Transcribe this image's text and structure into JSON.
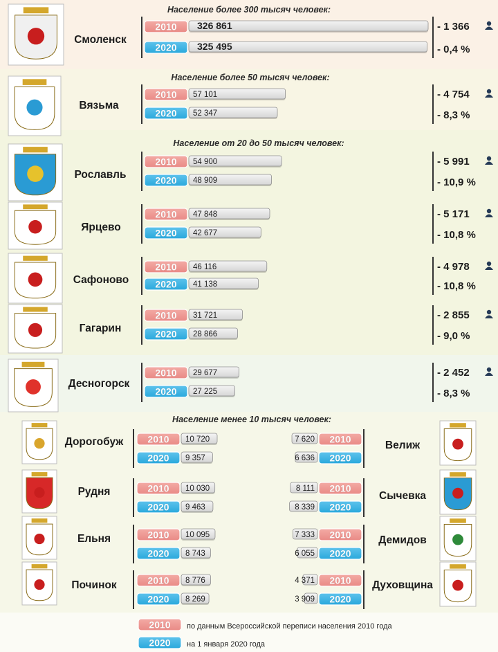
{
  "colors": {
    "year_2010": "#e98a85",
    "year_2020": "#29a8dc",
    "bar_fill": "#d6d6d6",
    "bar_border": "#8e8e8e",
    "text": "#1c1c1c"
  },
  "legend": {
    "year_2010": "2010",
    "year_2020": "2020",
    "desc_2010": "по данным Всероссийской переписи населения 2010 года",
    "desc_2020": "на 1 января 2020 года"
  },
  "headers": {
    "h1": "Население более 300 тысяч человек:",
    "h2": "Население более 50 тысяч человек:",
    "h3": "Население от 20 до 50 тысяч человек:",
    "h4": "Население менее 10 тысяч человек:"
  },
  "chart_data": {
    "type": "bar",
    "categories": [
      "Смоленск",
      "Вязьма",
      "Рославль",
      "Ярцево",
      "Сафоново",
      "Гагарин",
      "Десногорск",
      "Дорогобуж",
      "Рудня",
      "Ельня",
      "Починок",
      "Велиж",
      "Сычевка",
      "Демидов",
      "Духовщина"
    ],
    "series": [
      {
        "name": "2010",
        "values": [
          326861,
          57101,
          54900,
          47848,
          46116,
          31721,
          29677,
          10720,
          10030,
          10095,
          8776,
          7620,
          8111,
          7333,
          4371
        ]
      },
      {
        "name": "2020",
        "values": [
          325495,
          52347,
          48909,
          42677,
          41138,
          28866,
          27225,
          9357,
          9463,
          8743,
          8269,
          6636,
          8339,
          6055,
          3909
        ]
      }
    ],
    "value_labels_2010": [
      "326 861",
      "57 101",
      "54 900",
      "47 848",
      "46 116",
      "31 721",
      "29 677",
      "10 720",
      "10 030",
      "10 095",
      "8 776",
      "7 620",
      "8 111",
      "7 333",
      "4 371"
    ],
    "value_labels_2020": [
      "325 495",
      "52 347",
      "48 909",
      "42 677",
      "41 138",
      "28 866",
      "27 225",
      "9 357",
      "9 463",
      "8 743",
      "8 269",
      "6 636",
      "8 339",
      "6 055",
      "3 909"
    ],
    "changes_abs": [
      "- 1 366",
      "- 4 754",
      "- 5 991",
      "- 5 171",
      "- 4 978",
      "- 2 855",
      "- 2 452"
    ],
    "changes_pct": [
      "- 0,4 %",
      "- 8,3 %",
      "- 10,9 %",
      "- 10,8 %",
      "- 10,8 %",
      "- 9,0 %",
      "- 8,3 %"
    ]
  }
}
